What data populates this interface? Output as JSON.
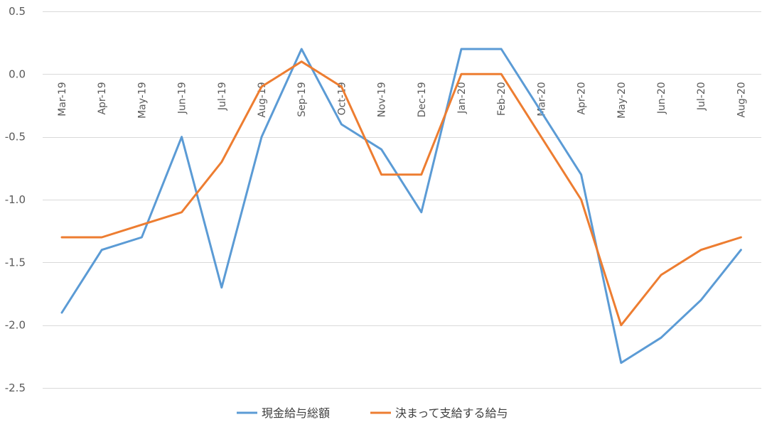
{
  "chart_data": {
    "type": "line",
    "title": "",
    "xlabel": "",
    "ylabel": "",
    "ylim": [
      -2.5,
      0.5
    ],
    "yticks": [
      0.5,
      0.0,
      -0.5,
      -1.0,
      -1.5,
      -2.0,
      -2.5
    ],
    "ytick_labels": [
      "0.5",
      "0.0",
      "-0.5",
      "-1.0",
      "-1.5",
      "-2.0",
      "-2.5"
    ],
    "categories": [
      "Mar-19",
      "Apr-19",
      "May-19",
      "Jun-19",
      "Jul-19",
      "Aug-19",
      "Sep-19",
      "Oct-19",
      "Nov-19",
      "Dec-19",
      "Jan-20",
      "Feb-20",
      "Mar-20",
      "Apr-20",
      "May-20",
      "Jun-20",
      "Jul-20",
      "Aug-20"
    ],
    "series": [
      {
        "name": "現金給与総額",
        "color": "#5b9bd5",
        "values": [
          -1.9,
          -1.4,
          -1.3,
          -0.5,
          -1.7,
          -0.5,
          0.2,
          -0.4,
          -0.6,
          -1.1,
          0.2,
          0.2,
          -0.3,
          -0.8,
          -2.3,
          -2.1,
          -1.8,
          -1.4
        ]
      },
      {
        "name": "決まって支給する給与",
        "color": "#ed7d31",
        "values": [
          -1.3,
          -1.3,
          -1.2,
          -1.1,
          -0.7,
          -0.1,
          0.1,
          -0.1,
          -0.8,
          -0.8,
          0.0,
          0.0,
          -0.5,
          -1.0,
          -2.0,
          -1.6,
          -1.4,
          -1.3
        ]
      }
    ],
    "grid": true,
    "legend_position": "bottom"
  }
}
